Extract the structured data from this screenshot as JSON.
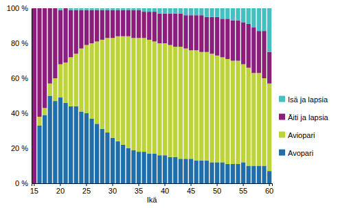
{
  "chart_data": {
    "type": "bar",
    "stacked": true,
    "x_label": "Ikä",
    "categories": [
      15,
      16,
      17,
      18,
      19,
      20,
      21,
      22,
      23,
      24,
      25,
      26,
      27,
      28,
      29,
      30,
      31,
      32,
      33,
      34,
      35,
      36,
      37,
      38,
      39,
      40,
      41,
      42,
      43,
      44,
      45,
      46,
      47,
      48,
      49,
      50,
      51,
      52,
      53,
      54,
      55,
      56,
      57,
      58,
      59,
      60
    ],
    "xticks": [
      15,
      20,
      25,
      30,
      35,
      40,
      45,
      50,
      55,
      60
    ],
    "ylim": [
      0,
      100
    ],
    "yticks": [
      {
        "value": 0,
        "label": "0 %"
      },
      {
        "value": 20,
        "label": "20 %"
      },
      {
        "value": 40,
        "label": "40 %"
      },
      {
        "value": 60,
        "label": "60 %"
      },
      {
        "value": 80,
        "label": "80 %"
      },
      {
        "value": 100,
        "label": "100 %"
      }
    ],
    "grid": false,
    "legend": "right",
    "series": [
      {
        "name": "Avopari",
        "color": "#1f6ea9",
        "values": [
          0,
          33,
          39,
          50,
          47,
          49,
          46,
          44,
          44,
          41,
          40,
          37,
          34,
          31,
          29,
          26,
          24,
          22,
          20,
          19,
          18,
          18,
          17,
          17,
          16,
          16,
          15,
          15,
          14,
          14,
          14,
          13,
          13,
          13,
          12,
          12,
          12,
          11,
          11,
          11,
          12,
          10,
          10,
          10,
          10,
          7
        ]
      },
      {
        "name": "Aviopari",
        "color": "#bcd33a",
        "values": [
          0,
          5,
          4,
          7,
          13,
          19,
          23,
          28,
          30,
          36,
          39,
          43,
          47,
          51,
          54,
          57,
          60,
          62,
          64,
          64,
          65,
          65,
          65,
          64,
          64,
          64,
          64,
          63,
          64,
          63,
          62,
          63,
          62,
          62,
          62,
          61,
          60,
          60,
          59,
          59,
          56,
          56,
          53,
          53,
          50,
          50
        ]
      },
      {
        "name": "Äiti ja lapsia",
        "color": "#8b1d7c",
        "values": [
          100,
          62,
          57,
          43,
          40,
          31,
          31,
          27,
          25,
          22,
          20,
          19,
          18,
          17,
          16,
          16,
          15,
          15,
          15,
          16,
          16,
          15,
          16,
          17,
          17,
          17,
          18,
          19,
          19,
          19,
          20,
          20,
          21,
          20,
          21,
          22,
          22,
          23,
          23,
          23,
          24,
          25,
          26,
          24,
          27,
          18
        ]
      },
      {
        "name": "Isä ja lapsia",
        "color": "#45bfc0",
        "values": [
          0,
          0,
          0,
          0,
          0,
          1,
          0,
          1,
          1,
          1,
          1,
          1,
          1,
          1,
          1,
          1,
          1,
          1,
          1,
          1,
          1,
          2,
          2,
          2,
          3,
          3,
          3,
          3,
          3,
          4,
          4,
          4,
          4,
          5,
          5,
          5,
          6,
          6,
          7,
          7,
          8,
          9,
          11,
          13,
          13,
          25
        ]
      }
    ]
  }
}
